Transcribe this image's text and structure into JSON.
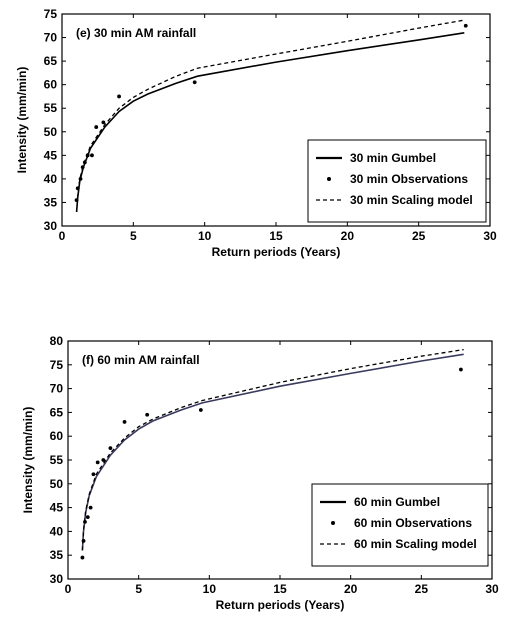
{
  "chart_data": [
    {
      "type": "line",
      "title": "(e) 30 min AM rainfall",
      "xlabel": "Return periods (Years)",
      "ylabel": "Intensity (mm/min)",
      "xlim": [
        0,
        30
      ],
      "ylim": [
        30,
        75
      ],
      "xticks": [
        "0",
        "5",
        "10",
        "15",
        "20",
        "25",
        "30"
      ],
      "yticks": [
        "30",
        "35",
        "40",
        "45",
        "50",
        "55",
        "60",
        "65",
        "70",
        "75"
      ],
      "legend_position": "lower-right",
      "series": [
        {
          "name": "30 min Gumbel",
          "style": "solid",
          "color": "#000000",
          "x": [
            1.02,
            1.1,
            1.25,
            1.5,
            2,
            3,
            4,
            5,
            6,
            8,
            9.5,
            15,
            20,
            25,
            28.2
          ],
          "y": [
            33.0,
            36.0,
            39.5,
            42.5,
            46.5,
            51.0,
            54.3,
            56.5,
            58.0,
            60.3,
            61.8,
            64.8,
            67.2,
            69.5,
            71.0
          ]
        },
        {
          "name": "30 min Observations",
          "style": "markers",
          "color": "#000000",
          "x": [
            1.02,
            1.1,
            1.3,
            1.45,
            1.6,
            1.8,
            2.1,
            2.4,
            2.9,
            4.0,
            9.3,
            28.3
          ],
          "y": [
            35.5,
            38.0,
            40.0,
            42.5,
            43.5,
            45.0,
            45.0,
            51.0,
            52.0,
            57.5,
            60.5,
            72.5
          ]
        },
        {
          "name": "30 min Scaling model",
          "style": "dashed",
          "color": "#000000",
          "x": [
            1.02,
            1.1,
            1.25,
            1.5,
            2,
            3,
            4,
            5,
            6,
            8,
            9.5,
            15,
            20,
            25,
            28.2
          ],
          "y": [
            33.0,
            36.3,
            40.0,
            43.0,
            47.0,
            51.5,
            55.0,
            57.3,
            59.0,
            61.8,
            63.5,
            66.5,
            69.2,
            72.0,
            73.7
          ]
        }
      ]
    },
    {
      "type": "line",
      "title": "(f) 60 min AM rainfall",
      "xlabel": "Return periods (Years)",
      "ylabel": "Intensity (mm/min)",
      "xlim": [
        0,
        30
      ],
      "ylim": [
        30,
        80
      ],
      "xticks": [
        "0",
        "5",
        "10",
        "15",
        "20",
        "25",
        "30"
      ],
      "yticks": [
        "30",
        "35",
        "40",
        "45",
        "50",
        "55",
        "60",
        "65",
        "70",
        "75",
        "80"
      ],
      "legend_position": "lower-right",
      "series": [
        {
          "name": "60 min Gumbel",
          "style": "solid",
          "color": "#3a3a5e",
          "x": [
            1.02,
            1.1,
            1.25,
            1.5,
            2,
            3,
            4,
            5,
            6,
            8,
            9.5,
            15,
            20,
            25,
            28
          ],
          "y": [
            36.0,
            40.0,
            44.0,
            47.5,
            51.5,
            56.0,
            59.2,
            61.5,
            63.2,
            65.5,
            67.0,
            70.5,
            73.2,
            75.8,
            77.2
          ]
        },
        {
          "name": "60 min Observations",
          "style": "markers",
          "color": "#000000",
          "x": [
            1.02,
            1.1,
            1.2,
            1.4,
            1.6,
            1.8,
            2.1,
            2.5,
            3.0,
            4.0,
            5.6,
            9.4,
            27.8
          ],
          "y": [
            34.5,
            38.0,
            42.0,
            43.0,
            45.0,
            52.0,
            54.5,
            55.0,
            57.5,
            63.0,
            64.5,
            65.5,
            74.0
          ]
        },
        {
          "name": "60 min Scaling model",
          "style": "dashed",
          "color": "#000000",
          "x": [
            1.02,
            1.1,
            1.25,
            1.5,
            2,
            3,
            4,
            5,
            6,
            8,
            9.5,
            15,
            20,
            25,
            28
          ],
          "y": [
            36.0,
            40.2,
            44.3,
            47.8,
            52.0,
            56.5,
            59.6,
            62.0,
            63.6,
            66.0,
            67.5,
            71.3,
            74.2,
            76.8,
            78.2
          ]
        }
      ]
    }
  ]
}
